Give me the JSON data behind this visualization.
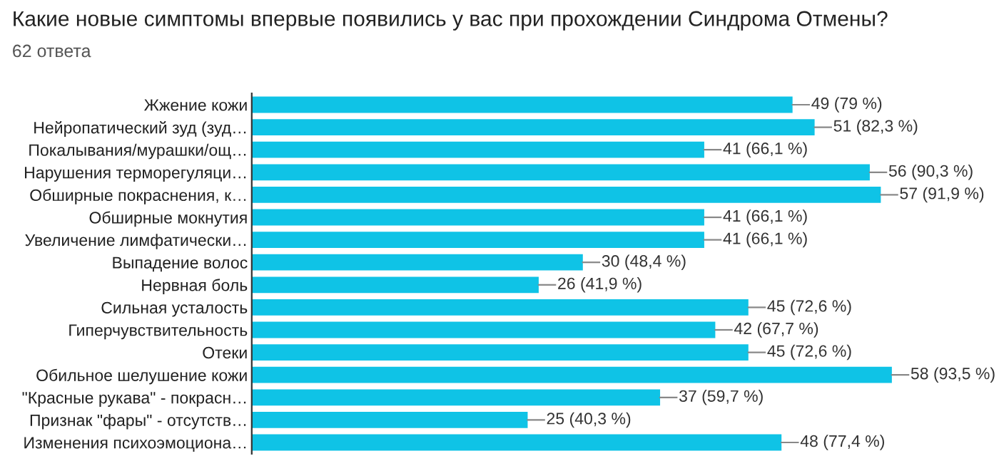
{
  "chart_data": {
    "type": "bar",
    "orientation": "horizontal",
    "title": "Какие новые симптомы впервые появились у вас при прохождении Синдрома Отмены?",
    "subtitle": "62 ответа",
    "categories": [
      "Жжение кожи",
      "Нейропатический зуд (зуд…",
      "Покалывания/мурашки/ощ…",
      "Нарушения терморегуляци…",
      "Обширные покраснения, к…",
      "Обширные мокнутия",
      "Увеличение лимфатически…",
      "Выпадение волос",
      "Нервная боль",
      "Сильная усталость",
      "Гиперчувствительность",
      "Отеки",
      "Обильное шелушение кожи",
      "\"Красные рукава\" - покрасн…",
      "Признак \"фары\" - отсутств…",
      "Изменения психоэмоциона…"
    ],
    "values": [
      49,
      51,
      41,
      56,
      57,
      41,
      41,
      30,
      26,
      45,
      42,
      45,
      58,
      37,
      25,
      48
    ],
    "value_labels": [
      "49 (79 %)",
      "51 (82,3 %)",
      "41 (66,1 %)",
      "56 (90,3 %)",
      "57 (91,9 %)",
      "41 (66,1 %)",
      "41 (66,1 %)",
      "30 (48,4 %)",
      "26 (41,9 %)",
      "45 (72,6 %)",
      "42 (67,7 %)",
      "45 (72,6 %)",
      "58 (93,5 %)",
      "37 (59,7 %)",
      "25 (40,3 %)",
      "48 (77,4 %)"
    ],
    "color": "#0fc3e6",
    "tick_labels": "y",
    "legend": false
  }
}
